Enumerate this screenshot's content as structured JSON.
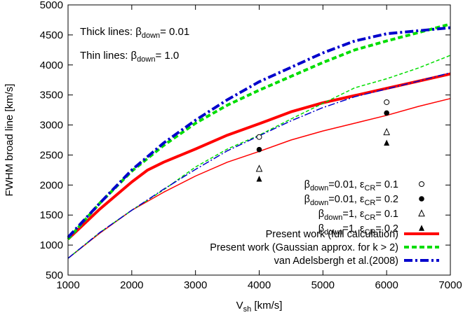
{
  "chart_data": {
    "type": "line",
    "xlabel": {
      "main": "V",
      "sub": "sh",
      "rest": " [km/s]"
    },
    "ylabel": "FWHM broad line  [km/s]",
    "xlim": [
      1000,
      7000
    ],
    "ylim": [
      500,
      5000
    ],
    "xticks": [
      1000,
      2000,
      3000,
      4000,
      5000,
      6000,
      7000
    ],
    "yticks": [
      500,
      1000,
      1500,
      2000,
      2500,
      3000,
      3500,
      4000,
      4500,
      5000
    ],
    "grid": false,
    "legend_position": "bottom-right",
    "annotations": [
      {
        "pre": "Thick lines: β",
        "sub": "down",
        "post": "= 0.01"
      },
      {
        "pre": "Thin lines: β",
        "sub": "down",
        "post": "= 1.0"
      }
    ],
    "series": [
      {
        "name": "Present work (full calculation)",
        "color": "#ff0000",
        "style": "solid",
        "width": "thick",
        "points": [
          [
            1000,
            1100
          ],
          [
            1500,
            1600
          ],
          [
            2000,
            2050
          ],
          [
            2250,
            2250
          ],
          [
            2500,
            2380
          ],
          [
            3000,
            2600
          ],
          [
            3500,
            2830
          ],
          [
            4000,
            3020
          ],
          [
            4500,
            3220
          ],
          [
            5000,
            3370
          ],
          [
            5500,
            3490
          ],
          [
            6000,
            3610
          ],
          [
            6500,
            3730
          ],
          [
            7000,
            3850
          ]
        ]
      },
      {
        "name": "Present work (Gaussian approx. for k > 2)",
        "color": "#00dd00",
        "style": "dashed",
        "width": "thick",
        "points": [
          [
            1000,
            1100
          ],
          [
            1500,
            1700
          ],
          [
            2000,
            2230
          ],
          [
            2500,
            2660
          ],
          [
            3000,
            3030
          ],
          [
            3500,
            3330
          ],
          [
            4000,
            3580
          ],
          [
            4500,
            3810
          ],
          [
            5000,
            4040
          ],
          [
            5500,
            4250
          ],
          [
            6000,
            4400
          ],
          [
            6500,
            4540
          ],
          [
            7000,
            4680
          ]
        ]
      },
      {
        "name": "van Adelsbergh et al.(2008)",
        "color": "#0000cc",
        "style": "dashdot",
        "width": "thick",
        "points": [
          [
            1000,
            1130
          ],
          [
            1500,
            1700
          ],
          [
            2000,
            2250
          ],
          [
            2500,
            2700
          ],
          [
            3000,
            3080
          ],
          [
            3500,
            3420
          ],
          [
            4000,
            3720
          ],
          [
            4500,
            3960
          ],
          [
            5000,
            4200
          ],
          [
            5500,
            4400
          ],
          [
            6000,
            4520
          ],
          [
            6500,
            4570
          ],
          [
            7000,
            4620
          ]
        ]
      },
      {
        "color": "#ff0000",
        "style": "solid",
        "width": "thin",
        "points": [
          [
            1000,
            780
          ],
          [
            1500,
            1200
          ],
          [
            2000,
            1580
          ],
          [
            2500,
            1880
          ],
          [
            3000,
            2150
          ],
          [
            3500,
            2380
          ],
          [
            4000,
            2560
          ],
          [
            4500,
            2750
          ],
          [
            5000,
            2900
          ],
          [
            5500,
            3030
          ],
          [
            6000,
            3160
          ],
          [
            6500,
            3310
          ],
          [
            7000,
            3440
          ]
        ]
      },
      {
        "color": "#00dd00",
        "style": "dashed",
        "width": "thin",
        "points": [
          [
            1000,
            780
          ],
          [
            1500,
            1210
          ],
          [
            2000,
            1580
          ],
          [
            2500,
            1920
          ],
          [
            3000,
            2300
          ],
          [
            3500,
            2600
          ],
          [
            4000,
            2830
          ],
          [
            4500,
            3100
          ],
          [
            5000,
            3360
          ],
          [
            5500,
            3620
          ],
          [
            6000,
            3770
          ],
          [
            6500,
            3950
          ],
          [
            7000,
            4160
          ]
        ]
      },
      {
        "color": "#0000cc",
        "style": "dashdot",
        "width": "thin",
        "points": [
          [
            1000,
            780
          ],
          [
            1500,
            1210
          ],
          [
            2000,
            1580
          ],
          [
            2500,
            1930
          ],
          [
            3000,
            2260
          ],
          [
            3500,
            2570
          ],
          [
            4000,
            2820
          ],
          [
            4500,
            3070
          ],
          [
            5000,
            3290
          ],
          [
            5500,
            3470
          ],
          [
            6000,
            3600
          ],
          [
            6500,
            3730
          ],
          [
            7000,
            3870
          ]
        ]
      }
    ],
    "markers": [
      {
        "name_parts": {
          "b": "=0.01, ",
          "e": "= 0.1"
        },
        "symbol": "open-circle",
        "points": [
          [
            4000,
            2800
          ],
          [
            6000,
            3380
          ]
        ]
      },
      {
        "name_parts": {
          "b": "=0.01, ",
          "e": "= 0.2"
        },
        "symbol": "filled-circle",
        "points": [
          [
            4000,
            2590
          ],
          [
            6000,
            3200
          ]
        ]
      },
      {
        "name_parts": {
          "b": "=1,      ",
          "e": "= 0.1"
        },
        "symbol": "open-triangle",
        "points": [
          [
            4000,
            2270
          ],
          [
            6000,
            2880
          ]
        ]
      },
      {
        "name_parts": {
          "b": "=1,      ",
          "e": "= 0.2"
        },
        "symbol": "filled-triangle",
        "points": [
          [
            4000,
            2100
          ],
          [
            6000,
            2700
          ]
        ]
      }
    ],
    "marker_label": {
      "beta": "β",
      "beta_sub": "down",
      "eps": "ε",
      "eps_sub": "CR"
    }
  }
}
